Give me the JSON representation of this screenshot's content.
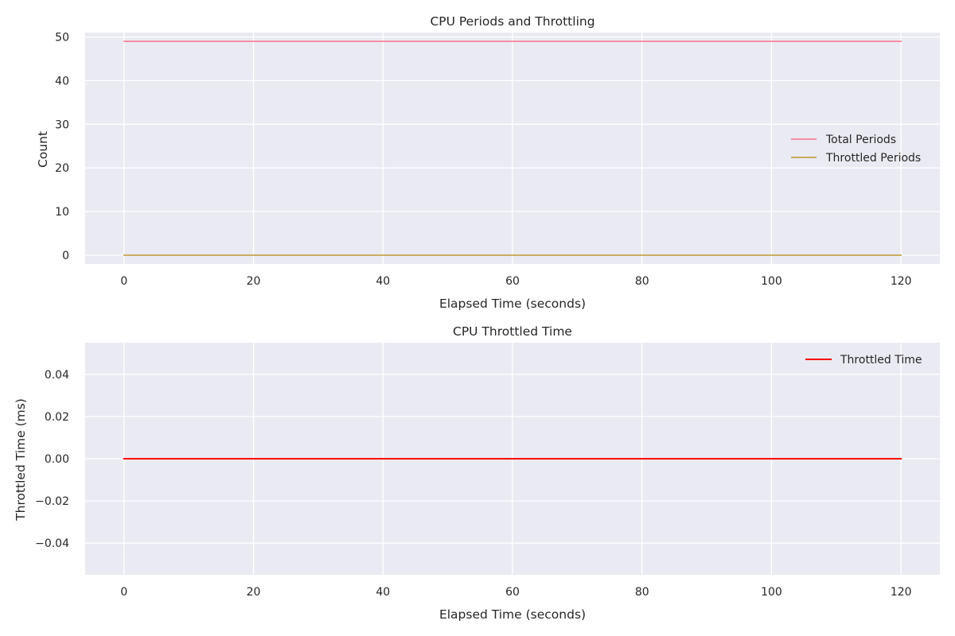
{
  "figure": {
    "background": "#ffffff",
    "axes_facecolor": "#eaeaf2",
    "grid_color": "#ffffff"
  },
  "chart_data": [
    {
      "type": "line",
      "title": "CPU Periods and Throttling",
      "xlabel": "Elapsed Time (seconds)",
      "ylabel": "Count",
      "xlim": [
        -6,
        126
      ],
      "ylim": [
        -2,
        51
      ],
      "xticks": [
        0,
        20,
        40,
        60,
        80,
        100,
        120
      ],
      "xtick_labels": [
        "0",
        "20",
        "40",
        "60",
        "80",
        "100",
        "120"
      ],
      "yticks": [
        0,
        10,
        20,
        30,
        40,
        50
      ],
      "ytick_labels": [
        "0",
        "10",
        "20",
        "30",
        "40",
        "50"
      ],
      "grid": true,
      "legend_position": "center-right",
      "series": [
        {
          "name": "Total Periods",
          "color": "#f77189",
          "x": [
            0,
            120
          ],
          "y": [
            49,
            49
          ]
        },
        {
          "name": "Throttled Periods",
          "color": "#bb9832",
          "x": [
            0,
            120
          ],
          "y": [
            0,
            0
          ]
        }
      ]
    },
    {
      "type": "line",
      "title": "CPU Throttled Time",
      "xlabel": "Elapsed Time (seconds)",
      "ylabel": "Throttled Time (ms)",
      "xlim": [
        -6,
        126
      ],
      "ylim": [
        -0.055,
        0.055
      ],
      "xticks": [
        0,
        20,
        40,
        60,
        80,
        100,
        120
      ],
      "xtick_labels": [
        "0",
        "20",
        "40",
        "60",
        "80",
        "100",
        "120"
      ],
      "yticks": [
        -0.04,
        -0.02,
        0,
        0.02,
        0.04
      ],
      "ytick_labels": [
        "−0.04",
        "−0.02",
        "0.00",
        "0.02",
        "0.04"
      ],
      "grid": true,
      "legend_position": "top-right",
      "series": [
        {
          "name": "Throttled Time",
          "color": "#ff0000",
          "x": [
            0,
            120
          ],
          "y": [
            0,
            0
          ]
        }
      ]
    }
  ]
}
